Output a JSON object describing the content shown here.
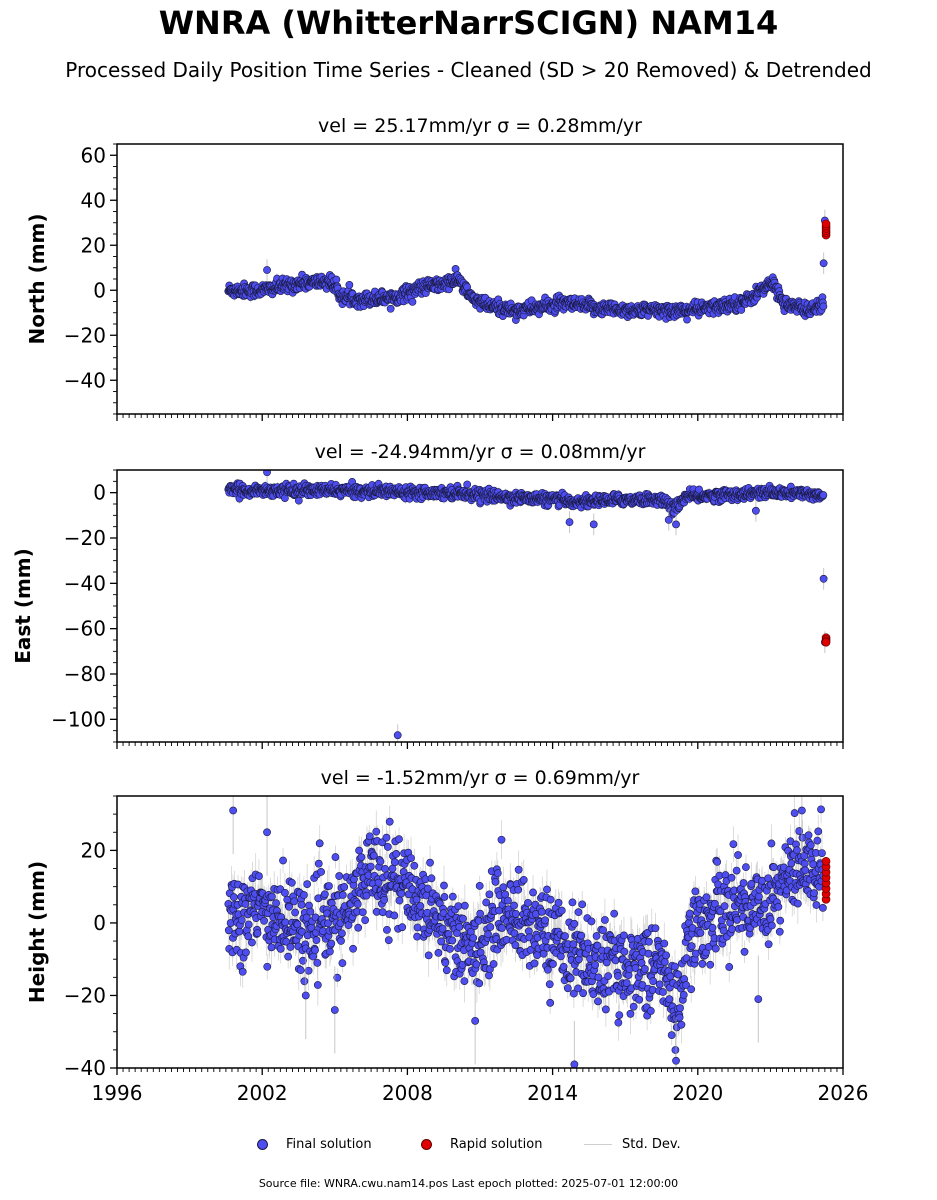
{
  "title": "WNRA (WhitterNarrSCIGN) NAM14",
  "subtitle": "Processed Daily Position Time Series - Cleaned (SD > 20 Removed) & Detrended",
  "footer": "Source file: WNRA.cwu.nam14.pos  Last epoch plotted: 2025-07-01 12:00:00",
  "legend": {
    "final": "Final solution",
    "rapid": "Rapid solution",
    "std": "Std. Dev."
  },
  "colors": {
    "final": "#4d4df0",
    "rapid": "#e00000",
    "std": "#b0b0b0",
    "edge": "#1a1a40"
  },
  "chart_data": [
    {
      "type": "scatter",
      "title": "vel = 25.17mm/yr   σ = 0.28mm/yr",
      "ylabel": "North (mm)",
      "xlim": [
        1996,
        2026
      ],
      "ylim": [
        -55,
        65
      ],
      "yticks": [
        "60",
        "40",
        "20",
        "0",
        "−20",
        "−40"
      ],
      "ytick_values": [
        60,
        40,
        20,
        0,
        -20,
        -40
      ],
      "start_year": 2000.6,
      "end_year": 2025.2,
      "trend": [
        [
          2000.6,
          0
        ],
        [
          2002,
          0
        ],
        [
          2003.5,
          3
        ],
        [
          2004.8,
          4
        ],
        [
          2005.3,
          -3
        ],
        [
          2006.2,
          -4
        ],
        [
          2007.5,
          -3
        ],
        [
          2008.5,
          1
        ],
        [
          2009.6,
          3
        ],
        [
          2010.1,
          5
        ],
        [
          2010.6,
          -3
        ],
        [
          2011.3,
          -7
        ],
        [
          2012.5,
          -9
        ],
        [
          2014.5,
          -6
        ],
        [
          2016,
          -8
        ],
        [
          2017.5,
          -9
        ],
        [
          2019.3,
          -9
        ],
        [
          2020.5,
          -8
        ],
        [
          2022,
          -5
        ],
        [
          2022.6,
          0
        ],
        [
          2023.1,
          3
        ],
        [
          2023.6,
          -6
        ],
        [
          2024.5,
          -9
        ],
        [
          2025.2,
          -6
        ]
      ],
      "noise": 1.5,
      "std_base": 1.6,
      "extra_points": [
        [
          2002.2,
          9
        ],
        [
          2025.2,
          12
        ],
        [
          2025.25,
          31
        ]
      ],
      "rapid": {
        "x": 2025.3,
        "values": [
          24.5,
          25.5,
          26.5,
          27.5,
          28.5,
          29.5
        ]
      }
    },
    {
      "type": "scatter",
      "title": "vel = -24.94mm/yr   σ = 0.08mm/yr",
      "ylabel": "East (mm)",
      "xlim": [
        1996,
        2026
      ],
      "ylim": [
        -110,
        10
      ],
      "yticks": [
        "0",
        "−20",
        "−40",
        "−60",
        "−80",
        "−100"
      ],
      "ytick_values": [
        0,
        -20,
        -40,
        -60,
        -80,
        -100
      ],
      "start_year": 2000.6,
      "end_year": 2025.2,
      "trend": [
        [
          2000.6,
          1
        ],
        [
          2005,
          1
        ],
        [
          2010,
          0
        ],
        [
          2012,
          -2
        ],
        [
          2014,
          -3
        ],
        [
          2015,
          -4
        ],
        [
          2017,
          -3
        ],
        [
          2018.5,
          -3
        ],
        [
          2019,
          -7
        ],
        [
          2019.5,
          -2
        ],
        [
          2021,
          -1
        ],
        [
          2023,
          0
        ],
        [
          2025.2,
          -1
        ]
      ],
      "noise": 1.2,
      "std_base": 1.6,
      "extra_points": [
        [
          2002.2,
          9
        ],
        [
          2007.6,
          -107
        ],
        [
          2014.7,
          -13
        ],
        [
          2015.7,
          -14
        ],
        [
          2018.8,
          -12
        ],
        [
          2019.1,
          -14
        ],
        [
          2022.4,
          -8
        ],
        [
          2025.2,
          -38
        ],
        [
          2025.25,
          -66
        ]
      ],
      "rapid": {
        "x": 2025.3,
        "values": [
          -64,
          -64.8,
          -65.5,
          -66
        ]
      }
    },
    {
      "type": "scatter",
      "title": "vel = -1.52mm/yr   σ = 0.69mm/yr",
      "ylabel": "Height (mm)",
      "xlim": [
        1996,
        2026
      ],
      "ylim": [
        -40,
        35
      ],
      "yticks": [
        "20",
        "0",
        "−20",
        "−40"
      ],
      "ytick_values": [
        20,
        0,
        -20,
        -40
      ],
      "xticks": [
        "1996",
        "2002",
        "2008",
        "2014",
        "2020",
        "2026"
      ],
      "xtick_values": [
        1996,
        2002,
        2008,
        2014,
        2020,
        2026
      ],
      "start_year": 2000.6,
      "end_year": 2025.2,
      "trend": [
        [
          2000.6,
          2
        ],
        [
          2002,
          3
        ],
        [
          2004,
          -2
        ],
        [
          2005.5,
          2
        ],
        [
          2006.5,
          16
        ],
        [
          2007.5,
          12
        ],
        [
          2009,
          4
        ],
        [
          2010.5,
          -8
        ],
        [
          2012,
          4
        ],
        [
          2014,
          -4
        ],
        [
          2016,
          -12
        ],
        [
          2018.5,
          -12
        ],
        [
          2019.1,
          -25
        ],
        [
          2019.6,
          -5
        ],
        [
          2021,
          5
        ],
        [
          2022.5,
          5
        ],
        [
          2024,
          14
        ],
        [
          2025.2,
          16
        ]
      ],
      "noise": 6,
      "std_base": 4,
      "extra_points": [
        [
          2000.8,
          31
        ],
        [
          2002.2,
          25
        ],
        [
          2003.8,
          -20
        ],
        [
          2005,
          -24
        ],
        [
          2010.8,
          -27
        ],
        [
          2014.9,
          -39
        ],
        [
          2019.1,
          -38
        ],
        [
          2022.5,
          -21
        ],
        [
          2024.3,
          31
        ]
      ],
      "rapid": {
        "x": 2025.3,
        "values": [
          6.5,
          8,
          9.5,
          11,
          12.5,
          14,
          15.5,
          17
        ]
      }
    }
  ]
}
